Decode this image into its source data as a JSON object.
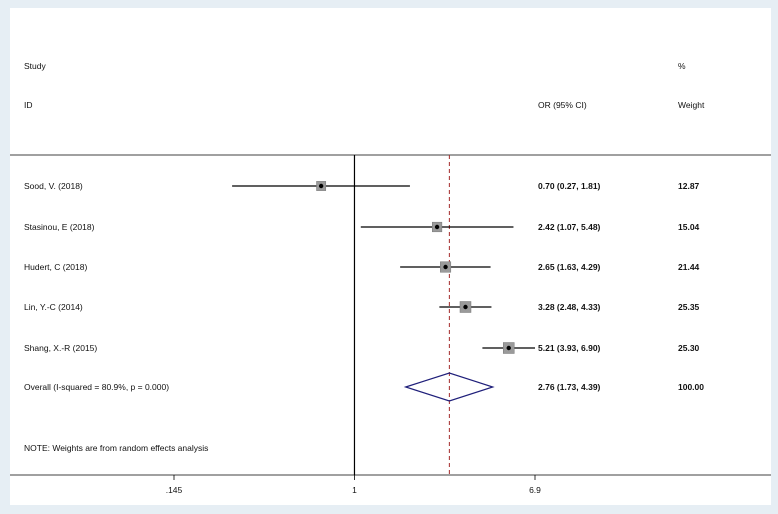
{
  "chart_data": {
    "type": "forest",
    "header": {
      "study_label": "Study",
      "id_label": "ID",
      "or_label": "OR (95% CI)",
      "weight_pct_label": "%",
      "weight_label": "Weight"
    },
    "x_axis": {
      "scale": "log",
      "ticks": [
        0.145,
        1,
        6.9
      ],
      "tick_labels": [
        ".145",
        "1",
        "6.9"
      ],
      "range": [
        0.145,
        6.9
      ],
      "reference_line": 1,
      "pooled_line": 2.76
    },
    "studies": [
      {
        "id": "Sood, V. (2018)",
        "or": 0.7,
        "lower": 0.27,
        "upper": 1.81,
        "ci_text": "0.70 (0.27, 1.81)",
        "weight": 12.87,
        "weight_text": "12.87"
      },
      {
        "id": "Stasinou, E (2018)",
        "or": 2.42,
        "lower": 1.07,
        "upper": 5.48,
        "ci_text": "2.42 (1.07, 5.48)",
        "weight": 15.04,
        "weight_text": "15.04"
      },
      {
        "id": "Hudert, C (2018)",
        "or": 2.65,
        "lower": 1.63,
        "upper": 4.29,
        "ci_text": "2.65 (1.63, 4.29)",
        "weight": 21.44,
        "weight_text": "21.44"
      },
      {
        "id": "Lin, Y.-C (2014)",
        "or": 3.28,
        "lower": 2.48,
        "upper": 4.33,
        "ci_text": "3.28 (2.48, 4.33)",
        "weight": 25.35,
        "weight_text": "25.35"
      },
      {
        "id": "Shang, X.-R (2015)",
        "or": 5.21,
        "lower": 3.93,
        "upper": 6.9,
        "ci_text": "5.21 (3.93, 6.90)",
        "weight": 25.3,
        "weight_text": "25.30"
      }
    ],
    "overall": {
      "label": "Overall  (I-squared = 80.9%, p = 0.000)",
      "or": 2.76,
      "lower": 1.73,
      "upper": 4.39,
      "ci_text": "2.76 (1.73, 4.39)",
      "weight_text": "100.00"
    },
    "note": "NOTE: Weights are from random effects analysis",
    "colors": {
      "diamond": "#1f1f7a",
      "pooled_line": "#a32a2a",
      "lines": "#000000",
      "background": "#e6eef4"
    }
  }
}
